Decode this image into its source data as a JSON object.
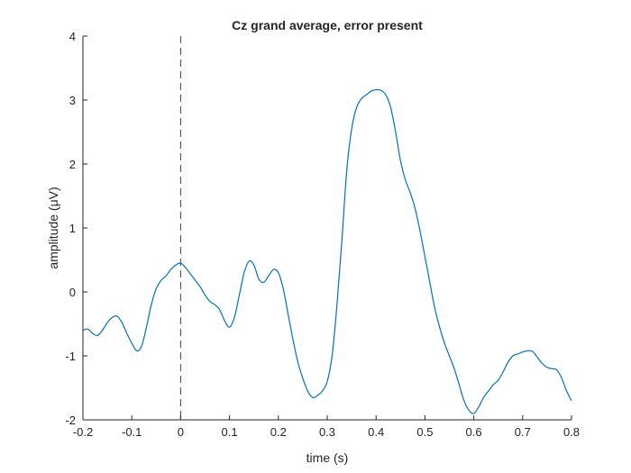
{
  "chart_data": {
    "type": "line",
    "title": "Cz grand average, error present",
    "xlabel": "time (s)",
    "ylabel": "amplitude (μV)",
    "xlim": [
      -0.2,
      0.8
    ],
    "ylim": [
      -2,
      4
    ],
    "xticks": [
      -0.2,
      -0.1,
      0,
      0.1,
      0.2,
      0.3,
      0.4,
      0.5,
      0.6,
      0.7,
      0.8
    ],
    "xtick_labels": [
      "-0.2",
      "-0.1",
      "0",
      "0.1",
      "0.2",
      "0.3",
      "0.4",
      "0.5",
      "0.6",
      "0.7",
      "0.8"
    ],
    "yticks": [
      -2,
      -1,
      0,
      1,
      2,
      3,
      4
    ],
    "ytick_labels": [
      "-2",
      "-1",
      "0",
      "1",
      "2",
      "3",
      "4"
    ],
    "grid": false,
    "reference_line": {
      "x": 0,
      "style": "dashed"
    },
    "line_color": "#0072BD",
    "series": [
      {
        "x": [
          -0.2,
          -0.19,
          -0.18,
          -0.17,
          -0.16,
          -0.15,
          -0.14,
          -0.13,
          -0.12,
          -0.11,
          -0.1,
          -0.09,
          -0.08,
          -0.07,
          -0.06,
          -0.05,
          -0.04,
          -0.03,
          -0.02,
          -0.01,
          0,
          0.01,
          0.02,
          0.03,
          0.04,
          0.05,
          0.06,
          0.07,
          0.08,
          0.09,
          0.1,
          0.11,
          0.12,
          0.13,
          0.14,
          0.15,
          0.16,
          0.17,
          0.18,
          0.19,
          0.2,
          0.21,
          0.22,
          0.23,
          0.24,
          0.25,
          0.26,
          0.27,
          0.28,
          0.29,
          0.3,
          0.31,
          0.32,
          0.33,
          0.34,
          0.35,
          0.36,
          0.37,
          0.38,
          0.39,
          0.4,
          0.41,
          0.42,
          0.43,
          0.44,
          0.45,
          0.46,
          0.47,
          0.48,
          0.49,
          0.5,
          0.51,
          0.52,
          0.53,
          0.54,
          0.55,
          0.56,
          0.57,
          0.58,
          0.59,
          0.6,
          0.61,
          0.62,
          0.63,
          0.64,
          0.65,
          0.66,
          0.67,
          0.68,
          0.69,
          0.7,
          0.71,
          0.72,
          0.73,
          0.74,
          0.75,
          0.76,
          0.77,
          0.78,
          0.79,
          0.8
        ],
        "y": [
          -0.6,
          -0.58,
          -0.65,
          -0.68,
          -0.6,
          -0.48,
          -0.4,
          -0.38,
          -0.48,
          -0.65,
          -0.8,
          -0.92,
          -0.85,
          -0.55,
          -0.2,
          0.05,
          0.18,
          0.25,
          0.35,
          0.42,
          0.45,
          0.38,
          0.28,
          0.18,
          0.08,
          -0.05,
          -0.15,
          -0.2,
          -0.28,
          -0.45,
          -0.55,
          -0.4,
          -0.05,
          0.3,
          0.48,
          0.42,
          0.2,
          0.15,
          0.25,
          0.35,
          0.3,
          0.05,
          -0.35,
          -0.75,
          -1.1,
          -1.35,
          -1.55,
          -1.65,
          -1.62,
          -1.55,
          -1.4,
          -1.0,
          -0.2,
          0.8,
          1.9,
          2.55,
          2.88,
          3.02,
          3.08,
          3.14,
          3.16,
          3.15,
          3.08,
          2.88,
          2.5,
          2.05,
          1.75,
          1.55,
          1.3,
          0.95,
          0.55,
          0.15,
          -0.25,
          -0.55,
          -0.8,
          -1.0,
          -1.2,
          -1.45,
          -1.7,
          -1.85,
          -1.9,
          -1.8,
          -1.65,
          -1.55,
          -1.45,
          -1.38,
          -1.25,
          -1.1,
          -1.0,
          -0.97,
          -0.94,
          -0.92,
          -0.93,
          -1.02,
          -1.12,
          -1.18,
          -1.2,
          -1.22,
          -1.35,
          -1.55,
          -1.7
        ]
      }
    ]
  }
}
